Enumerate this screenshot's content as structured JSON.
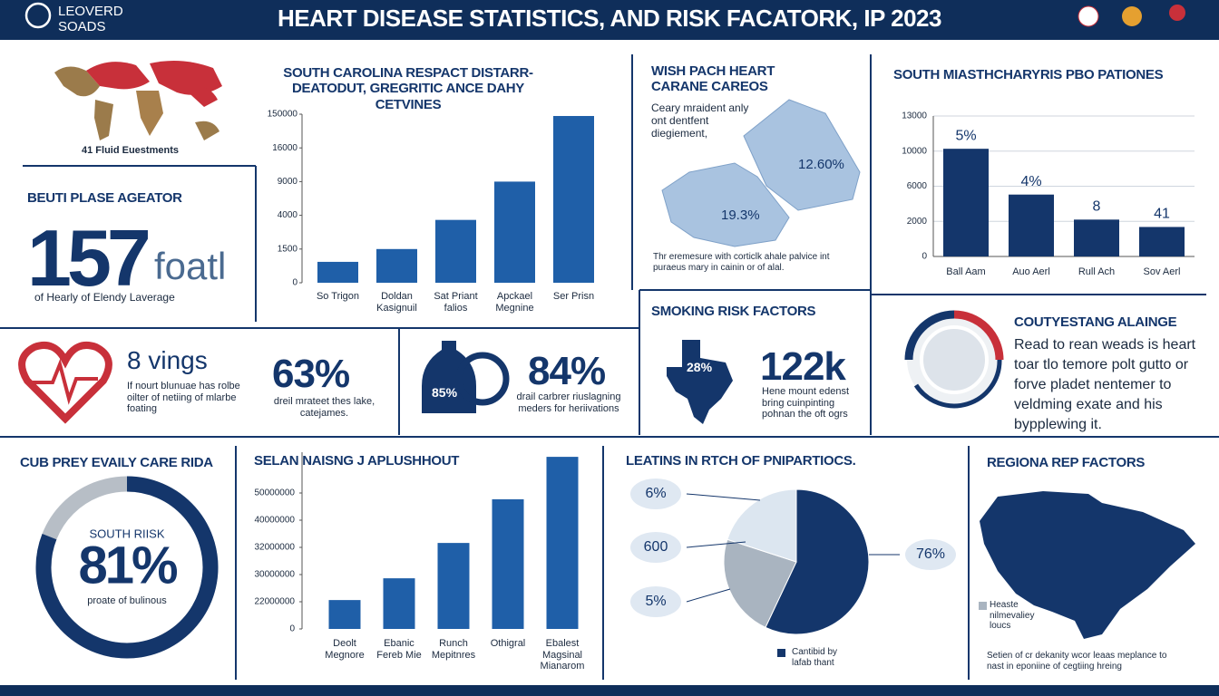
{
  "header": {
    "logo": "LEOVERD SOADS",
    "title": "HEART DISEASE STATISTICS, AND RISK FACATORK, IP 2023"
  },
  "map_caption": "41 Fluid Euestments",
  "stat_left": {
    "heading": "BEUTI PLASE AGEATOR",
    "number": "157",
    "unit": "foatl",
    "caption": "of Hearly of Elendy Laverage"
  },
  "care_panel": {
    "title": "WISH PACH HEART CARANE CAREOS",
    "text": "Ceary mraident anly ont dentfent diegiement,",
    "label_a": "12.60%",
    "label_b": "19.3%",
    "caption": "Thr eremesure with corticlk ahale palvice int puraeus mary in cainin or of alal."
  },
  "heart_panel": {
    "number": "8 vings",
    "text": "If nourt blunuae has rolbe oilter of netiing of mlarbe foating",
    "percent": "63%",
    "percent_text": "dreil mrateet thes lake, catejames."
  },
  "bottle_panel": {
    "icon_label": "85%",
    "percent": "84%",
    "text": "drail carbrer riuslagning meders for heriivations"
  },
  "smoking_panel": {
    "title": "SMOKING RISK FACTORS",
    "state_label": "28%",
    "number": "122k",
    "text": "Hene mount edenst bring cuinpinting pohnan the oft ogrs"
  },
  "counsel_panel": {
    "title": "COUTYESTANG ALAINGE",
    "text": "Read to rean weads is heart toar tlo temore polt gutto or forve pladet nentemer to veldming exate and his bypplewing it."
  },
  "region_panel": {
    "title": "REGIONA REP FACTORS",
    "legend": "Heaste nilmevaliey loucs",
    "caption": "Setien of cr dekanity wcor leaas meplance to nast in eponiine of cegtiing hreing"
  },
  "chart_data": [
    {
      "type": "bar",
      "title": "SOUTH CAROLINA RESPACT DISTARR- DEATODUT, GREGRITIC ANCE DAHY CETVINES",
      "categories": [
        "So Trigon",
        "Doldan Kasignuil",
        "Sat Priant falios",
        "Apckael Megnine",
        "Ser Prisn"
      ],
      "values": [
        930,
        1500,
        3660,
        9000,
        142800
      ],
      "color": "#1f5fa8",
      "ylim": [
        0,
        150000
      ],
      "yticks": [
        0,
        1500,
        4000,
        9000,
        16000,
        150000
      ],
      "grid": false
    },
    {
      "type": "bar",
      "title": "SOUTH MIASTHCHARYRIS PBO PATIONES",
      "categories": [
        "Ball Aam",
        "Auo Aerl",
        "Rull Ach",
        "Sov Aerl"
      ],
      "values": [
        10200,
        5050,
        2200,
        1680
      ],
      "annotations": [
        "5%",
        "4%",
        "8",
        "41"
      ],
      "color": "#14366b",
      "ylim": [
        0,
        13000
      ],
      "yticks": [
        0,
        2000,
        6000,
        10000,
        13000
      ],
      "grid": true
    },
    {
      "type": "bar",
      "title": "SELAN NAISNG J APLUSHHOUT",
      "categories": [
        "Deolt Megnore",
        "Ebanic Fereb Mie",
        "Runch Mepitnres",
        "Othigral",
        "Ebalest Magsinal Mianarom"
      ],
      "values": [
        22500000,
        28900000,
        33300000,
        47700000,
        63300000
      ],
      "color": "#1f5fa8",
      "ylim": [
        0,
        65000000
      ],
      "yticks": [
        0,
        22000000,
        30000000,
        32000000,
        40000000,
        50000000
      ],
      "grid": false
    },
    {
      "type": "pie",
      "title": "LEATINS IN RTCH OF PNIPARTIOCS.",
      "values": [
        57,
        23,
        20
      ],
      "colors": [
        "#14366b",
        "#a9b4c0",
        "#dce6f0"
      ],
      "callouts": [
        "6%",
        "600",
        "5%",
        "76%"
      ],
      "legend": "Cantibid by lafab thant"
    },
    {
      "type": "donut",
      "title": "CUB PREY EVAILY CARE RIDA",
      "label": "SOUTH RIISK",
      "values": [
        81
      ],
      "value_labels": [
        "81%"
      ],
      "caption": "proate of bulinous",
      "color": "#14366b",
      "track_color": "#b7bec6"
    }
  ]
}
